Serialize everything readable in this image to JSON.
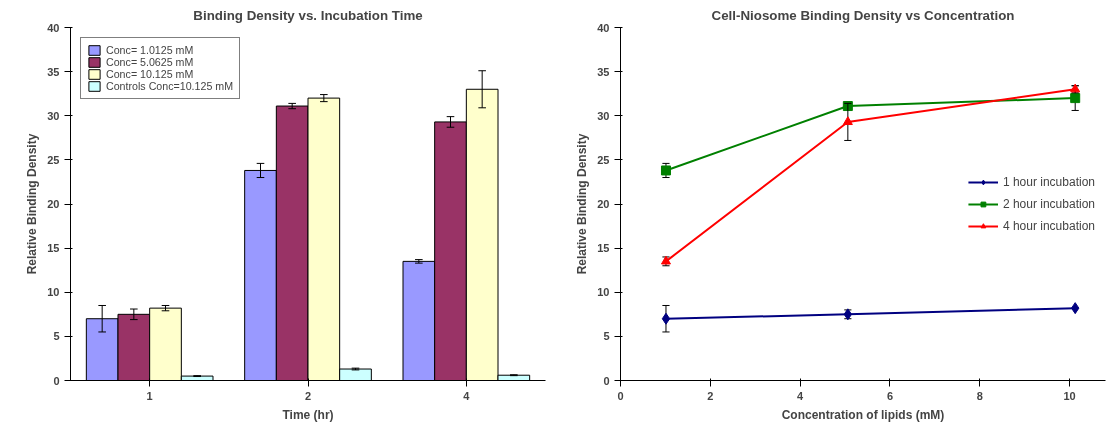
{
  "chart_data": [
    {
      "type": "bar",
      "title": "Binding Density vs. Incubation Time",
      "xlabel": "Time (hr)",
      "ylabel": "Relative Binding Density",
      "categories": [
        "1",
        "2",
        "4"
      ],
      "ylim": [
        0,
        40
      ],
      "yticks": [
        0,
        5,
        10,
        15,
        20,
        25,
        30,
        35,
        40
      ],
      "grid": false,
      "legend": "top left",
      "series": [
        {
          "name": "Conc= 1.0125 mM",
          "color": "#9999ff",
          "values": [
            7.0,
            23.8,
            13.5
          ],
          "errors": [
            1.5,
            0.8,
            0.2
          ]
        },
        {
          "name": "Conc= 5.0625 mM",
          "color": "#993366",
          "values": [
            7.5,
            31.1,
            29.3
          ],
          "errors": [
            0.6,
            0.3,
            0.6
          ]
        },
        {
          "name": "Conc= 10.125 mM",
          "color": "#ffffcc",
          "values": [
            8.2,
            32.0,
            33.0
          ],
          "errors": [
            0.3,
            0.4,
            2.1
          ]
        },
        {
          "name": "Controls Conc=10.125 mM",
          "color": "#ccffff",
          "values": [
            0.5,
            1.3,
            0.6
          ],
          "errors": [
            0.05,
            0.1,
            0.05
          ]
        }
      ]
    },
    {
      "type": "line",
      "title": "Cell-Niosome Binding Density vs Concentration",
      "xlabel": "Concentration of lipids (mM)",
      "ylabel": "Relative Binding Density",
      "x": [
        1.0125,
        5.0625,
        10.125
      ],
      "xlim": [
        0,
        10.8
      ],
      "xticks": [
        0,
        2,
        4,
        6,
        8,
        10
      ],
      "ylim": [
        0,
        40
      ],
      "yticks": [
        0,
        5,
        10,
        15,
        20,
        25,
        30,
        35,
        40
      ],
      "grid": false,
      "legend": "right",
      "line_style": "solid",
      "series": [
        {
          "name": "1 hour incubation",
          "color": "#000080",
          "marker": "diamond",
          "values": [
            7.0,
            7.5,
            8.2
          ],
          "errors": [
            1.5,
            0.5,
            null
          ]
        },
        {
          "name": "2 hour incubation",
          "color": "#008000",
          "marker": "square",
          "values": [
            23.8,
            31.1,
            32.0
          ],
          "errors": [
            0.8,
            null,
            1.4
          ]
        },
        {
          "name": "4 hour incubation",
          "color": "#ff0000",
          "marker": "triangle",
          "values": [
            13.5,
            29.3,
            33.0
          ],
          "errors": [
            0.5,
            2.1,
            0.4
          ]
        }
      ]
    }
  ]
}
